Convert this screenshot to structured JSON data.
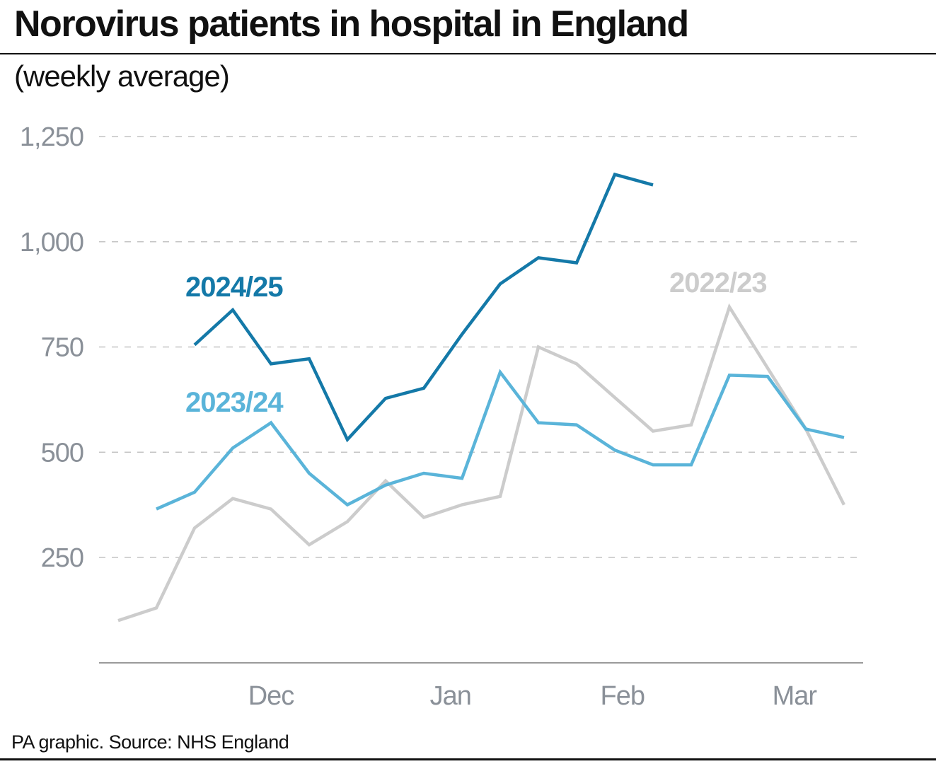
{
  "header": {
    "title": "Norovirus patients in hospital in England",
    "subtitle": "(weekly average)"
  },
  "footer": {
    "source": "PA graphic. Source: NHS England"
  },
  "colors": {
    "series_2024_25": "#1479a8",
    "series_2023_24": "#5ab4d9",
    "series_2022_23": "#cccccc",
    "axis_text": "#8a9098",
    "gridline": "#c4c4c4",
    "baseline": "#9a9a9a"
  },
  "chart_data": {
    "type": "line",
    "title": "Norovirus patients in hospital in England",
    "subtitle": "(weekly average)",
    "xlabel": "",
    "ylabel": "",
    "x_unit": "week",
    "x_ticks": [
      {
        "label": "Dec",
        "week": 4
      },
      {
        "label": "Jan",
        "week": 8.7
      },
      {
        "label": "Feb",
        "week": 13.2
      },
      {
        "label": "Mar",
        "week": 17.7
      }
    ],
    "xlim": [
      -0.5,
      19.5
    ],
    "ylim": [
      0,
      1250
    ],
    "y_ticks": [
      250,
      500,
      750,
      1000,
      1250
    ],
    "y_tick_labels": [
      "250",
      "500",
      "750",
      "1,000",
      "1,250"
    ],
    "grid": true,
    "legend": "inline labels",
    "series": [
      {
        "name": "2022/23",
        "x": [
          0,
          1,
          2,
          3,
          4,
          5,
          6,
          7,
          8,
          9,
          10,
          11,
          12,
          13,
          14,
          15,
          16,
          17,
          18,
          19
        ],
        "values": [
          100,
          130,
          320,
          390,
          365,
          280,
          335,
          432,
          345,
          375,
          395,
          750,
          710,
          630,
          550,
          565,
          845,
          700,
          555,
          375
        ]
      },
      {
        "name": "2023/24",
        "x": [
          1,
          2,
          3,
          4,
          5,
          6,
          7,
          8,
          9,
          10,
          11,
          12,
          13,
          14,
          15,
          16,
          17,
          18,
          19
        ],
        "values": [
          365,
          405,
          510,
          570,
          450,
          375,
          422,
          450,
          438,
          690,
          570,
          565,
          505,
          470,
          470,
          683,
          680,
          555,
          535
        ]
      },
      {
        "name": "2024/25",
        "x": [
          2,
          3,
          4,
          5,
          6,
          7,
          8,
          9,
          10,
          11,
          12,
          13,
          14
        ],
        "values": [
          755,
          838,
          710,
          722,
          530,
          628,
          652,
          780,
          900,
          962,
          950,
          1160,
          1135
        ]
      }
    ],
    "annotations": [
      {
        "text": "2024/25",
        "series": "2024/25"
      },
      {
        "text": "2023/24",
        "series": "2023/24"
      },
      {
        "text": "2022/23",
        "series": "2022/23"
      }
    ]
  }
}
